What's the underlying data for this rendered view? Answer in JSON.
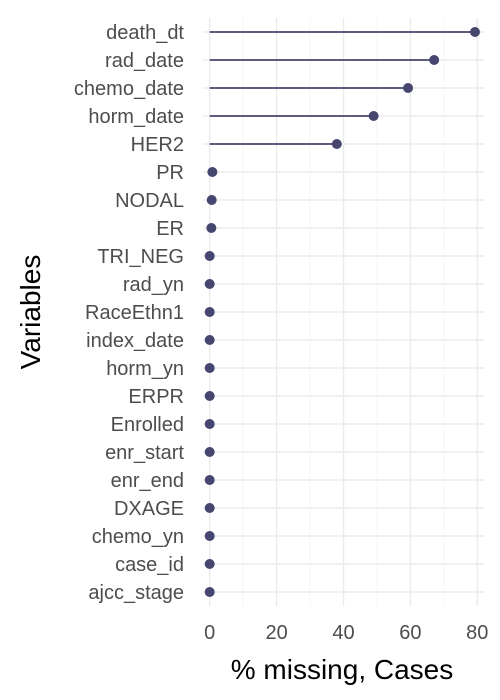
{
  "chart_data": {
    "type": "lollipop",
    "xlabel": "% missing, Cases",
    "ylabel": "Variables",
    "xlim": [
      -2,
      82
    ],
    "xticks": [
      0,
      20,
      40,
      60,
      80
    ],
    "grid": true,
    "legend": "none",
    "colors": {
      "mark": "#46466e",
      "grid_major": "#ebebeb",
      "grid_minor": "#f4f4f4",
      "tick_text": "#4d4d4d"
    },
    "categories": [
      "death_dt",
      "rad_date",
      "chemo_date",
      "horm_date",
      "HER2",
      "PR",
      "NODAL",
      "ER",
      "TRI_NEG",
      "rad_yn",
      "RaceEthn1",
      "index_date",
      "horm_yn",
      "ERPR",
      "Enrolled",
      "enr_start",
      "enr_end",
      "DXAGE",
      "chemo_yn",
      "case_id",
      "ajcc_stage"
    ],
    "values": [
      79.3,
      67.1,
      59.3,
      49.0,
      38.0,
      0.8,
      0.6,
      0.5,
      0,
      0,
      0,
      0,
      0,
      0,
      0,
      0,
      0,
      0,
      0,
      0,
      0
    ]
  }
}
